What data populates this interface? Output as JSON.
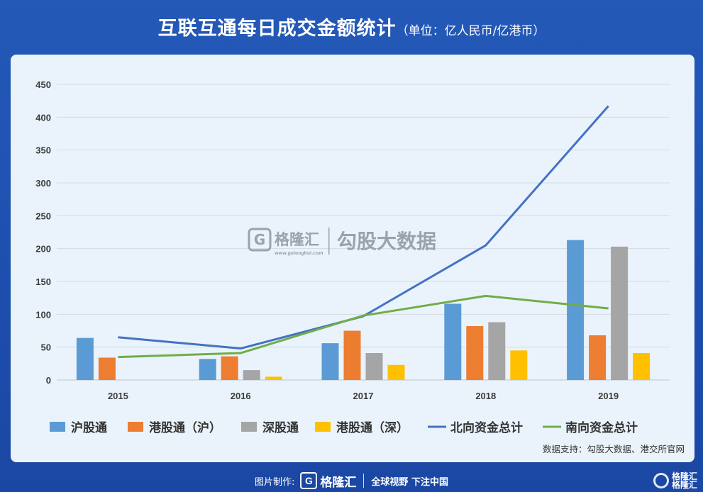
{
  "title": {
    "main": "互联互通每日成交金额统计",
    "sub": "（单位：亿人民币/亿港币）"
  },
  "watermark": {
    "logo_letter": "G",
    "brand": "格隆汇",
    "url": "www.gelonghui.com",
    "text": "勾股大数据"
  },
  "source": "数据支持：勾股大数据、港交所官网",
  "footer": {
    "made_by": "图片制作:",
    "logo_letter": "G",
    "brand": "格隆汇",
    "slogan": "全球视野 下注中国"
  },
  "corner": {
    "line1": "格隆汇",
    "line2": "格隆汇"
  },
  "chart_data": {
    "type": "bar",
    "categories": [
      "2015",
      "2016",
      "2017",
      "2018",
      "2019"
    ],
    "ylim": [
      0,
      450
    ],
    "yticks": [
      0,
      50,
      100,
      150,
      200,
      250,
      300,
      350,
      400,
      450
    ],
    "grid": true,
    "legend_position": "bottom",
    "series": [
      {
        "name": "沪股通",
        "kind": "bar",
        "color": "#5b9bd5",
        "values": [
          64,
          32,
          56,
          116,
          213
        ]
      },
      {
        "name": "港股通（沪）",
        "kind": "bar",
        "color": "#ed7d31",
        "values": [
          34,
          36,
          75,
          82,
          68
        ]
      },
      {
        "name": "深股通",
        "kind": "bar",
        "color": "#a5a5a5",
        "values": [
          null,
          15,
          41,
          88,
          203
        ]
      },
      {
        "name": "港股通（深）",
        "kind": "bar",
        "color": "#ffc000",
        "values": [
          null,
          5,
          23,
          45,
          41
        ]
      },
      {
        "name": "北向资金总计",
        "kind": "line",
        "color": "#4472c4",
        "values": [
          65,
          48,
          97,
          205,
          417
        ]
      },
      {
        "name": "南向资金总计",
        "kind": "line",
        "color": "#70ad47",
        "values": [
          35,
          41,
          98,
          128,
          109
        ]
      }
    ]
  }
}
